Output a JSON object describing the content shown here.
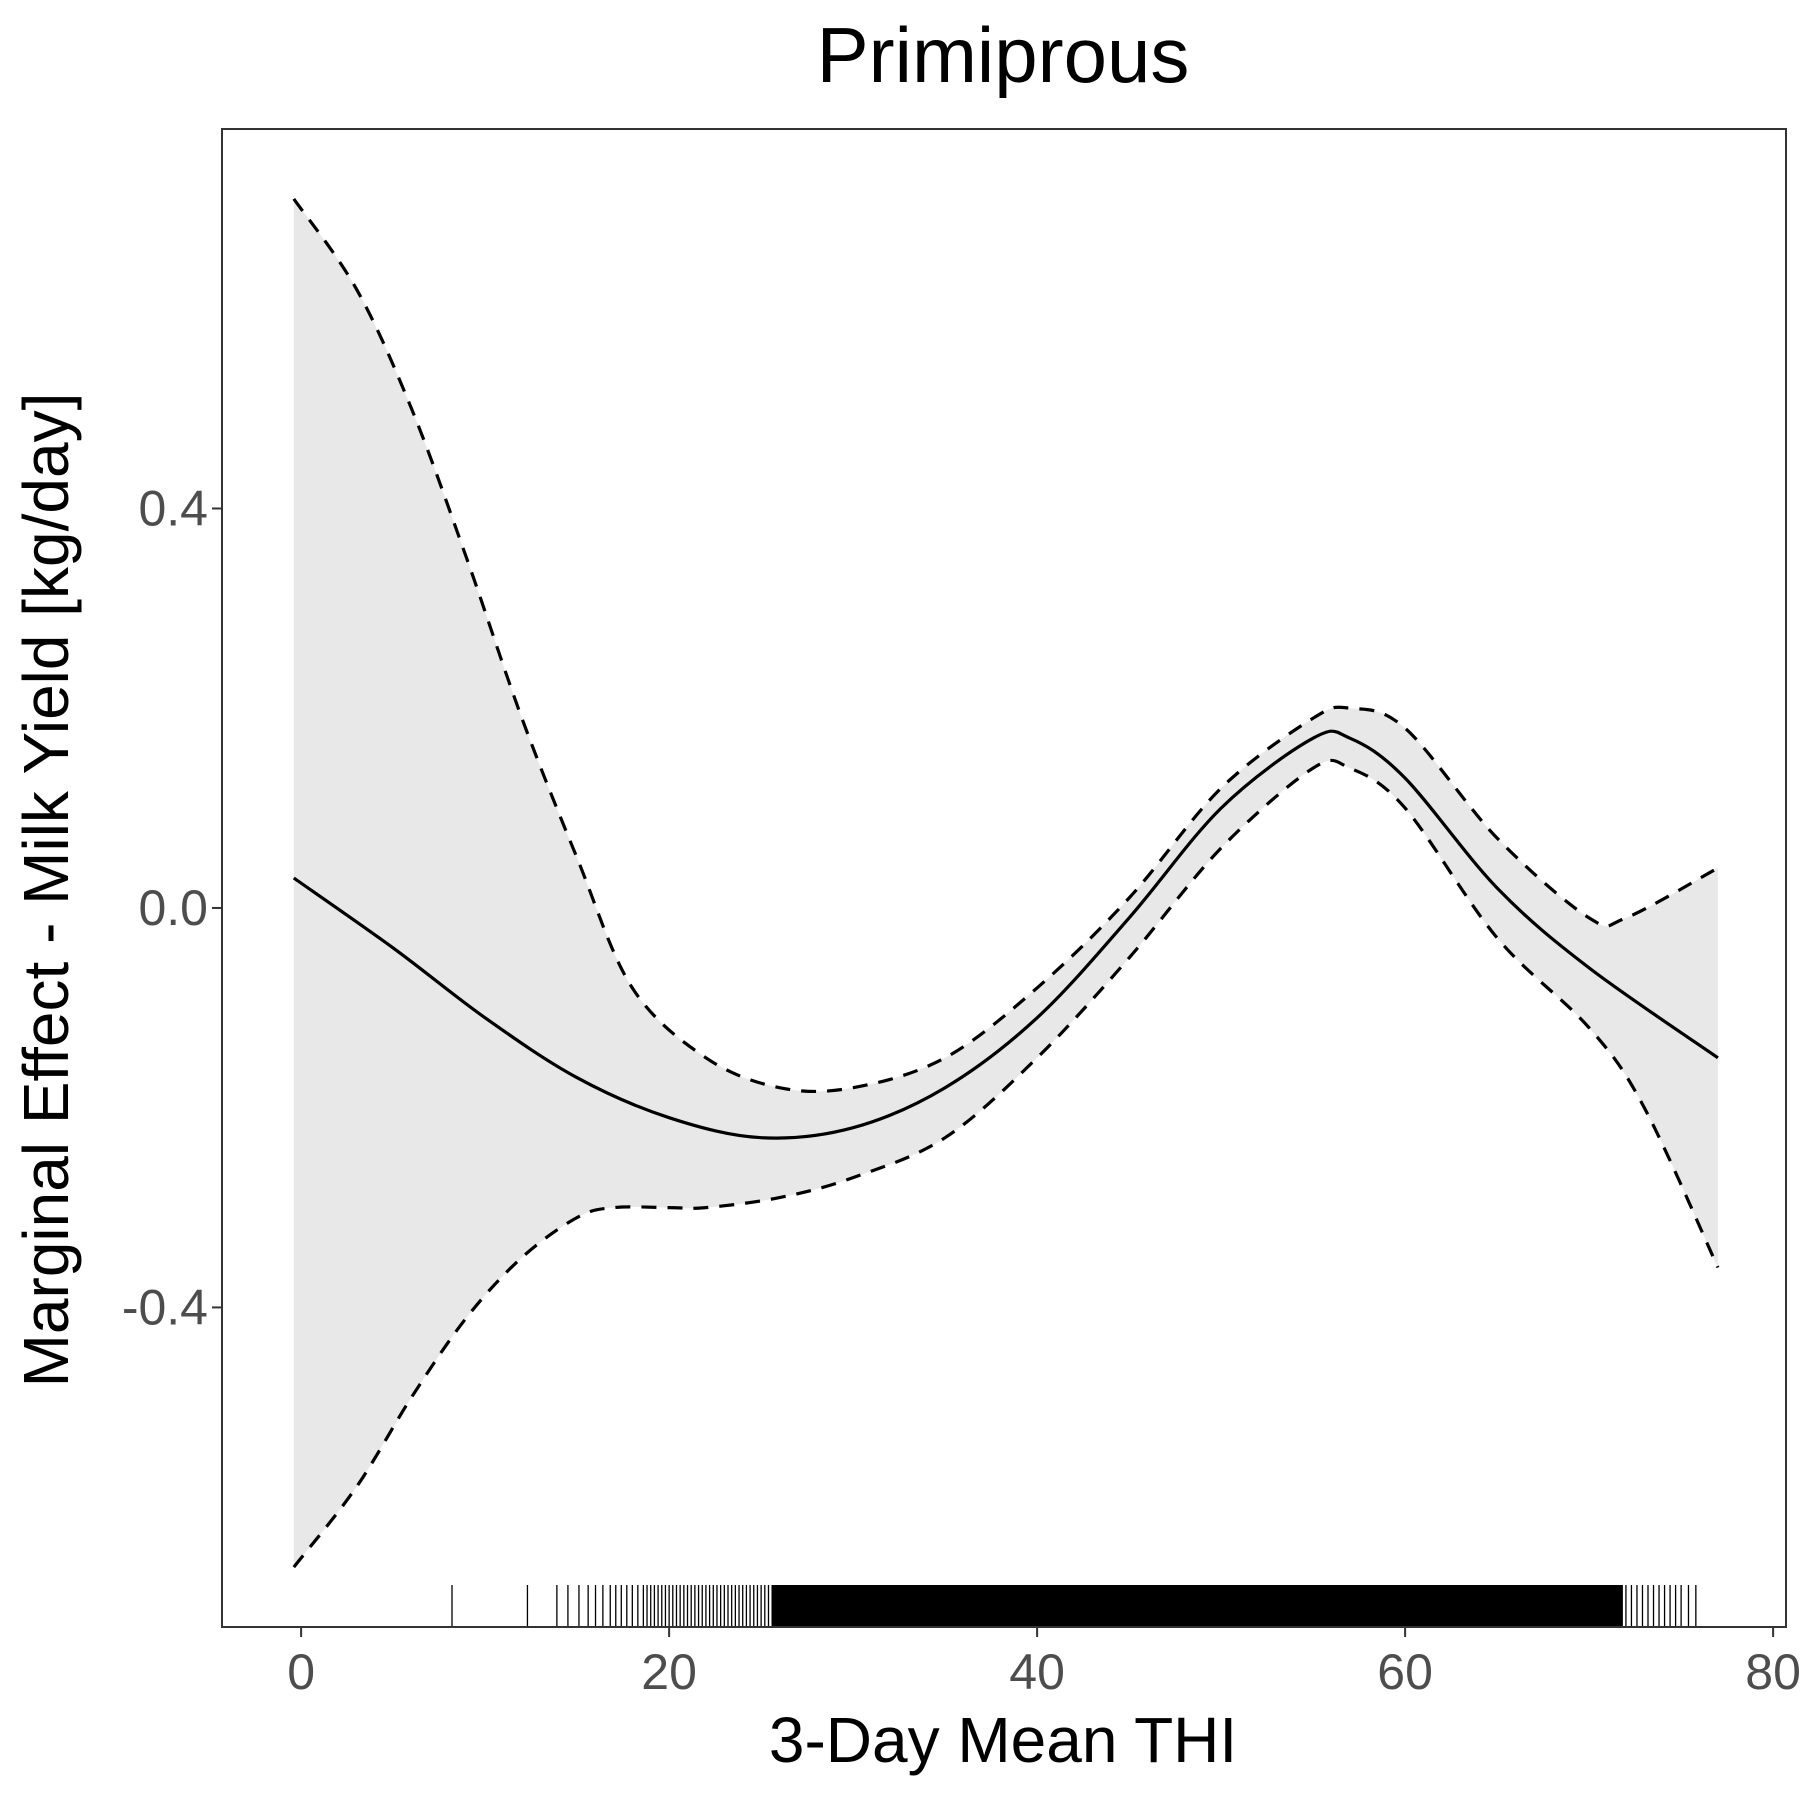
{
  "chart_data": {
    "type": "line",
    "title": "Primiprous",
    "xlabel": "3-Day Mean THI",
    "ylabel": "Marginal Effect - Milk Yield [kg/day]",
    "xlim": [
      -4.3,
      80.7
    ],
    "ylim": [
      -0.72,
      0.78
    ],
    "xticks": [
      0,
      20,
      40,
      60,
      80
    ],
    "yticks": [
      -0.4,
      0.0,
      0.4
    ],
    "ytick_labels": [
      "-0.4",
      "0.0",
      "0.4"
    ],
    "grid": false,
    "series": [
      {
        "role": "estimate",
        "style": "solid",
        "x": [
          -0.4,
          5,
          10,
          15,
          20,
          25,
          30,
          35,
          40,
          45,
          50,
          55,
          57,
          60,
          65,
          70,
          77
        ],
        "y": [
          0.03,
          -0.04,
          -0.11,
          -0.17,
          -0.21,
          -0.23,
          -0.22,
          -0.18,
          -0.11,
          -0.01,
          0.1,
          0.17,
          0.17,
          0.13,
          0.02,
          -0.06,
          -0.15
        ]
      },
      {
        "role": "upper",
        "style": "dashed",
        "x": [
          -0.4,
          3,
          6,
          9,
          12,
          15,
          18,
          22,
          26,
          30,
          35,
          40,
          45,
          50,
          55,
          57,
          60,
          65,
          70,
          72,
          77
        ],
        "y": [
          0.71,
          0.62,
          0.5,
          0.35,
          0.19,
          0.05,
          -0.08,
          -0.15,
          -0.18,
          -0.18,
          -0.15,
          -0.08,
          0.01,
          0.12,
          0.19,
          0.2,
          0.18,
          0.07,
          -0.01,
          -0.01,
          0.04
        ]
      },
      {
        "role": "lower",
        "style": "dashed",
        "x": [
          -0.4,
          3,
          6,
          9,
          12,
          15,
          17,
          20,
          22,
          26,
          30,
          35,
          40,
          45,
          50,
          55,
          57,
          60,
          65,
          70,
          73,
          77
        ],
        "y": [
          -0.66,
          -0.58,
          -0.49,
          -0.41,
          -0.35,
          -0.31,
          -0.3,
          -0.3,
          -0.3,
          -0.29,
          -0.27,
          -0.23,
          -0.15,
          -0.05,
          0.06,
          0.14,
          0.14,
          0.1,
          -0.03,
          -0.12,
          -0.2,
          -0.36
        ]
      }
    ],
    "rug_x": [
      8.2,
      12.3,
      13.9,
      14.5,
      15.1,
      15.6,
      16.0,
      16.4,
      16.8,
      17.1,
      17.4,
      17.7,
      18.0,
      18.3,
      18.6,
      18.8,
      19.0,
      19.2,
      19.4,
      19.6,
      19.8,
      20.0,
      20.2,
      20.4,
      20.6,
      20.8,
      21.0,
      21.2,
      21.4,
      21.6,
      21.8,
      22.0,
      22.2,
      22.4,
      22.6,
      22.8,
      23.0,
      23.2,
      23.4,
      23.6,
      23.8,
      24.0,
      24.2,
      24.4,
      24.6,
      24.8,
      25.0,
      25.2,
      25.4,
      25.6,
      71.8,
      72.0,
      72.3,
      72.6,
      72.9,
      73.2,
      73.5,
      73.8,
      74.1,
      74.4,
      74.7,
      75.0,
      75.4,
      75.8
    ],
    "rug_dense_range": [
      25.6,
      71.8
    ]
  }
}
